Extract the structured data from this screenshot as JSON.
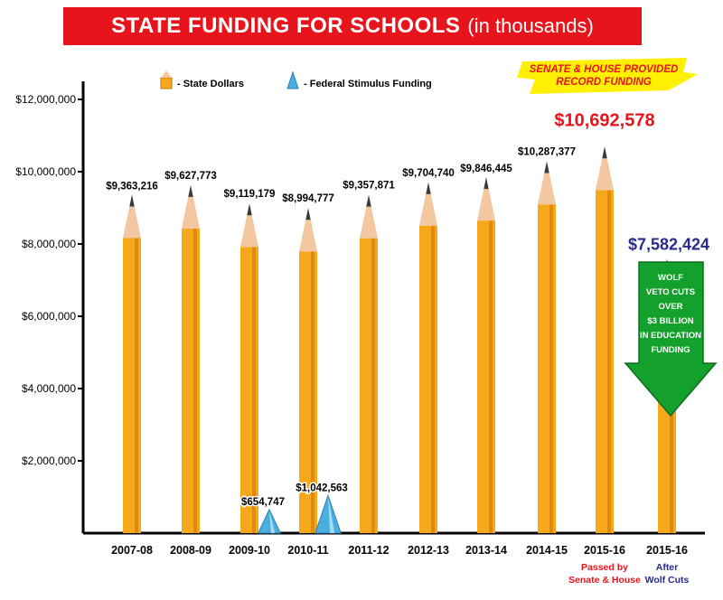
{
  "title": "STATE FUNDING FOR SCHOOLS",
  "subtitle": "(in thousands)",
  "colors": {
    "title_bg": "#e8141b",
    "pencil_body": "#f5a81c",
    "pencil_body_dark": "#e08a0e",
    "pencil_wood": "#f3c7a0",
    "pencil_tip": "#3a3a3a",
    "federal": "#4aaee0",
    "highlight": "#ffef00",
    "red_text": "#e8141b",
    "blue_text": "#2b2a8c",
    "arrow": "#14a02c"
  },
  "chart_data": {
    "type": "bar",
    "title": "STATE FUNDING FOR SCHOOLS",
    "subtitle": "(in thousands)",
    "ylim": [
      0,
      12000000
    ],
    "yticks": [
      2000000,
      4000000,
      6000000,
      8000000,
      10000000,
      12000000
    ],
    "ytick_labels": [
      "$2,000,000",
      "$4,000,000",
      "$6,000,000",
      "$8,000,000",
      "$10,000,000",
      "$12,000,000"
    ],
    "grid": false,
    "legend_position": "top-left",
    "categories": [
      "2007-08",
      "2008-09",
      "2009-10",
      "2010-11",
      "2011-12",
      "2012-13",
      "2013-14",
      "2014-15",
      "2015-16",
      "2015-16"
    ],
    "category_notes": [
      "",
      "",
      "",
      "",
      "",
      "",
      "",
      "",
      "Passed by Senate & House",
      "After Wolf Cuts"
    ],
    "series": [
      {
        "name": "- State Dollars",
        "values": [
          9363216,
          9627773,
          9119179,
          8994777,
          9357871,
          9704740,
          9846445,
          10287377,
          10692578,
          7582424
        ],
        "labels": [
          "$9,363,216",
          "$9,627,773",
          "$9,119,179",
          "$8,994,777",
          "$9,357,871",
          "$9,704,740",
          "$9,846,445",
          "$10,287,377",
          "$10,692,578",
          "$7,582,424"
        ]
      },
      {
        "name": "- Federal Stimulus Funding",
        "values": [
          0,
          0,
          654747,
          1042563,
          0,
          0,
          0,
          0,
          0,
          0
        ],
        "labels": [
          "",
          "",
          "$654,747",
          "$1,042,563",
          "",
          "",
          "",
          "",
          "",
          ""
        ]
      }
    ],
    "annotations": {
      "record": "SENATE & HOUSE PROVIDED RECORD FUNDING",
      "record_lines": [
        "SENATE & HOUSE PROVIDED",
        "RECORD FUNDING"
      ],
      "veto": "WOLF VETO CUTS OVER $3 BILLION IN EDUCATION FUNDING",
      "veto_lines": [
        "WOLF",
        "VETO CUTS",
        "OVER",
        "$3 BILLION",
        "IN EDUCATION",
        "FUNDING"
      ]
    }
  }
}
